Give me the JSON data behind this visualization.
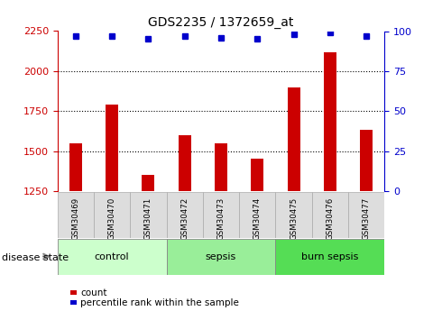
{
  "title": "GDS2235 / 1372659_at",
  "samples": [
    "GSM30469",
    "GSM30470",
    "GSM30471",
    "GSM30472",
    "GSM30473",
    "GSM30474",
    "GSM30475",
    "GSM30476",
    "GSM30477"
  ],
  "counts": [
    1550,
    1790,
    1355,
    1600,
    1550,
    1455,
    1900,
    2120,
    1635
  ],
  "percentiles": [
    97,
    97,
    95,
    97,
    96,
    95,
    98,
    99,
    97
  ],
  "groups": [
    {
      "label": "control",
      "indices": [
        0,
        1,
        2
      ],
      "color": "#ccffcc"
    },
    {
      "label": "sepsis",
      "indices": [
        3,
        4,
        5
      ],
      "color": "#99ee99"
    },
    {
      "label": "burn sepsis",
      "indices": [
        6,
        7,
        8
      ],
      "color": "#55dd55"
    }
  ],
  "ylim_left": [
    1250,
    2250
  ],
  "ylim_right": [
    0,
    100
  ],
  "yticks_left": [
    1250,
    1500,
    1750,
    2000,
    2250
  ],
  "yticks_right": [
    0,
    25,
    50,
    75,
    100
  ],
  "bar_color": "#cc0000",
  "dot_color": "#0000cc",
  "left_axis_color": "#cc0000",
  "right_axis_color": "#0000cc",
  "grid_color": "#000000",
  "label_count": "count",
  "label_percentile": "percentile rank within the sample",
  "disease_state_label": "disease state",
  "bg_xtick": "#dddddd",
  "bg_group_light": "#ccffcc",
  "bg_group_mid": "#99ee99",
  "bg_group_dark": "#55dd55"
}
